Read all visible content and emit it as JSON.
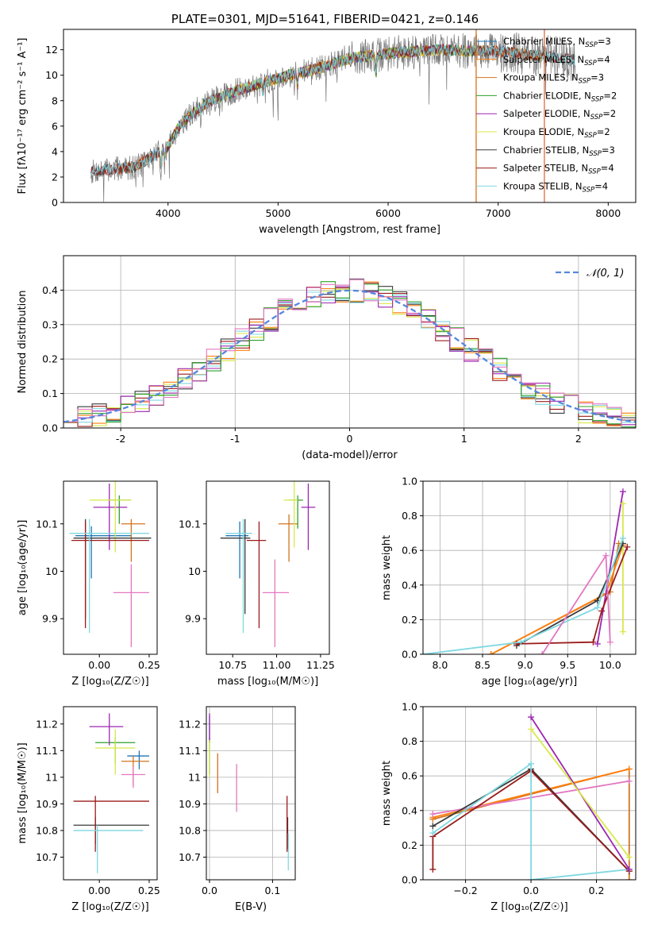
{
  "figure_title": "PLATE=0301, MJD=51641, FIBERID=0421, z=0.146",
  "palette": {
    "Chabrier MILES": "#1f77b4",
    "Salpeter MILES": "#ff7f0e",
    "Kroupa MILES": "#d2751f",
    "Chabrier ELODIE": "#2ca02c",
    "Salpeter ELODIE": "#9c27b0",
    "Kroupa ELODIE": "#d7e84a",
    "Chabrier STELIB": "#3a3a3a",
    "Salpeter STELIB": "#9b1b1b",
    "Kroupa STELIB": "#7fd8e0",
    "Data": "#777777",
    "Gaussian": "#5588dd",
    "Extra": "#e377c2"
  },
  "chart_data": [
    {
      "id": "spectrum",
      "type": "line",
      "title": "PLATE=0301, MJD=51641, FIBERID=0421, z=0.146",
      "xlabel": "wavelength [Angstrom, rest frame]",
      "ylabel": "Flux [fλ10⁻¹⁷ erg cm⁻² s⁻¹ A⁻¹]",
      "xlim": [
        3050,
        8250
      ],
      "ylim": [
        0,
        13.6
      ],
      "xticks": [
        4000,
        5000,
        6000,
        7000,
        8000
      ],
      "yticks": [
        0,
        2,
        4,
        6,
        8,
        10,
        12
      ],
      "legend_position": "top-right",
      "series_labels": [
        "Chabrier MILES, N_SSP=3",
        "Salpeter MILES, N_SSP=4",
        "Kroupa MILES, N_SSP=3",
        "Chabrier ELODIE, N_SSP=2",
        "Salpeter ELODIE, N_SSP=2",
        "Kroupa ELODIE, N_SSP=2",
        "Chabrier STELIB, N_SSP=3",
        "Salpeter STELIB, N_SSP=4",
        "Kroupa STELIB, N_SSP=4"
      ],
      "continuum": {
        "x": [
          3300,
          3500,
          3700,
          3850,
          4000,
          4100,
          4300,
          4500,
          4700,
          4900,
          5100,
          5300,
          5500,
          5700,
          5900,
          6100,
          6300,
          6500,
          6700,
          6900,
          7100,
          7300,
          7500,
          7700
        ],
        "y": [
          2.4,
          2.6,
          2.8,
          3.6,
          4.4,
          6.0,
          7.6,
          8.4,
          9.0,
          9.5,
          10.0,
          10.4,
          10.9,
          11.4,
          11.6,
          11.8,
          11.9,
          12.0,
          11.9,
          11.9,
          11.8,
          11.6,
          11.4,
          11.2
        ]
      }
    },
    {
      "id": "residuals",
      "type": "step",
      "xlabel": "(data-model)/error",
      "ylabel": "Normed distribution",
      "xlim": [
        -2.5,
        2.5
      ],
      "ylim": [
        0,
        0.5
      ],
      "xticks": [
        -2,
        -1,
        0,
        1,
        2
      ],
      "yticks": [
        0.0,
        0.1,
        0.2,
        0.3,
        0.4
      ],
      "grid": true,
      "legend_position": "top-right",
      "gaussian_label": "𝒩(0, 1)",
      "bin_width": 0.125
    },
    {
      "id": "age-vs-Z",
      "type": "errorbar",
      "xlabel": "Z [log₁₀(Z/Z☉)]",
      "ylabel": "age  [log₁₀(age/yr)]",
      "xlim": [
        -0.18,
        0.29
      ],
      "ylim": [
        9.825,
        10.19
      ],
      "xticks": [
        0.0,
        0.25
      ],
      "xticklabels": [
        "0.00",
        "0.25"
      ],
      "yticks": [
        9.9,
        10.0,
        10.1
      ],
      "points": [
        {
          "model": "Chabrier MILES",
          "x": -0.04,
          "y": 10.075,
          "xerr": [
            0.08,
            0.2
          ],
          "yerr": [
            0.09,
            0.02
          ]
        },
        {
          "model": "Kroupa MILES",
          "x": 0.16,
          "y": 10.1,
          "xerr": [
            0.05,
            0.07
          ],
          "yerr": [
            0.08,
            0.01
          ]
        },
        {
          "model": "Chabrier ELODIE",
          "x": 0.1,
          "y": 10.15,
          "xerr": [
            0.06,
            0.06
          ],
          "yerr": [
            0.05,
            0.01
          ]
        },
        {
          "model": "Salpeter ELODIE",
          "x": 0.05,
          "y": 10.135,
          "xerr": [
            0.08,
            0.09
          ],
          "yerr": [
            0.09,
            0.05
          ]
        },
        {
          "model": "Kroupa ELODIE",
          "x": 0.08,
          "y": 10.15,
          "xerr": [
            0.13,
            0.08
          ],
          "yerr": [
            0.11,
            0.04
          ]
        },
        {
          "model": "Chabrier STELIB",
          "x": -0.07,
          "y": 10.07,
          "xerr": [
            0.06,
            0.33
          ],
          "yerr": [
            0.17,
            0.04
          ]
        },
        {
          "model": "Salpeter STELIB",
          "x": -0.07,
          "y": 10.065,
          "xerr": [
            0.07,
            0.32
          ],
          "yerr": [
            0.185,
            0.04
          ]
        },
        {
          "model": "Kroupa STELIB",
          "x": -0.05,
          "y": 10.08,
          "xerr": [
            0.1,
            0.3
          ],
          "yerr": [
            0.21,
            0.03
          ]
        },
        {
          "model": "Extra",
          "x": 0.16,
          "y": 9.955,
          "xerr": [
            0.09,
            0.09
          ],
          "yerr": [
            0.115,
            0.06
          ]
        }
      ]
    },
    {
      "id": "age-vs-mass",
      "type": "errorbar",
      "xlabel": "mass [log₁₀(M/M☉)]",
      "xlim": [
        10.6,
        11.3
      ],
      "ylim": [
        9.825,
        10.19
      ],
      "xticks": [
        10.75,
        11.0,
        11.25
      ],
      "xticklabels": [
        "10.75",
        "11.00",
        "11.25"
      ],
      "yticks": [
        9.9,
        10.0,
        10.1
      ],
      "points": [
        {
          "model": "Chabrier MILES",
          "x": 10.79,
          "y": 10.075,
          "xerr": [
            0.08,
            0.05
          ],
          "yerr": [
            0.09,
            0.03
          ]
        },
        {
          "model": "Kroupa MILES",
          "x": 11.07,
          "y": 10.1,
          "xerr": [
            0.06,
            0.05
          ],
          "yerr": [
            0.08,
            0.02
          ]
        },
        {
          "model": "Chabrier ELODIE",
          "x": 11.12,
          "y": 10.15,
          "xerr": [
            0.05,
            0.03
          ],
          "yerr": [
            0.06,
            0.01
          ]
        },
        {
          "model": "Salpeter ELODIE",
          "x": 11.18,
          "y": 10.135,
          "xerr": [
            0.04,
            0.04
          ],
          "yerr": [
            0.09,
            0.05
          ]
        },
        {
          "model": "Kroupa ELODIE",
          "x": 11.1,
          "y": 10.15,
          "xerr": [
            0.06,
            0.02
          ],
          "yerr": [
            0.1,
            0.04
          ]
        },
        {
          "model": "Chabrier STELIB",
          "x": 10.82,
          "y": 10.07,
          "xerr": [
            0.14,
            0.03
          ],
          "yerr": [
            0.16,
            0.04
          ]
        },
        {
          "model": "Salpeter STELIB",
          "x": 10.9,
          "y": 10.065,
          "xerr": [
            0.07,
            0.04
          ],
          "yerr": [
            0.185,
            0.04
          ]
        },
        {
          "model": "Kroupa STELIB",
          "x": 10.81,
          "y": 10.08,
          "xerr": [
            0.1,
            0.05
          ],
          "yerr": [
            0.21,
            0.03
          ]
        },
        {
          "model": "Extra",
          "x": 10.99,
          "y": 9.955,
          "xerr": [
            0.07,
            0.08
          ],
          "yerr": [
            0.115,
            0.07
          ]
        }
      ]
    },
    {
      "id": "weight-vs-age",
      "type": "line",
      "xlabel": "age  [log₁₀(age/yr)]",
      "ylabel": "mass weight",
      "xlim": [
        7.8,
        10.3
      ],
      "ylim": [
        0,
        1
      ],
      "xticks": [
        8.0,
        8.5,
        9.0,
        9.5,
        10.0
      ],
      "xticklabels": [
        "8.0",
        "8.5",
        "9.0",
        "9.5",
        "10.0"
      ],
      "yticks": [
        0,
        0.2,
        0.4,
        0.6,
        0.8,
        1.0
      ],
      "yticklabels": [
        "0.0",
        "0.2",
        "0.4",
        "0.6",
        "0.8",
        "1.0"
      ],
      "grid": true,
      "series": [
        {
          "model": "Kroupa MILES",
          "x": [
            8.6,
            10.0,
            10.1
          ],
          "y": [
            0.0,
            0.36,
            0.64
          ]
        },
        {
          "model": "Salpeter MILES",
          "x": [
            8.6,
            9.95,
            10.15
          ],
          "y": [
            0.0,
            0.35,
            0.63
          ]
        },
        {
          "model": "Salpeter ELODIE",
          "x": [
            9.85,
            10.15
          ],
          "y": [
            0.06,
            0.94
          ]
        },
        {
          "model": "Kroupa ELODIE",
          "x": [
            10.15,
            10.15
          ],
          "y": [
            0.13,
            0.87
          ]
        },
        {
          "model": "Chabrier STELIB",
          "x": [
            8.9,
            9.85,
            10.15
          ],
          "y": [
            0.05,
            0.31,
            0.64
          ]
        },
        {
          "model": "Salpeter STELIB",
          "x": [
            8.9,
            9.8,
            9.9,
            10.2
          ],
          "y": [
            0.06,
            0.07,
            0.25,
            0.62
          ]
        },
        {
          "model": "Kroupa STELIB",
          "x": [
            7.8,
            8.95,
            9.85,
            10.15
          ],
          "y": [
            0.0,
            0.07,
            0.27,
            0.67
          ]
        },
        {
          "model": "Extra",
          "x": [
            9.2,
            9.95,
            10.0
          ],
          "y": [
            0.0,
            0.57,
            0.07
          ]
        }
      ]
    },
    {
      "id": "mass-vs-Z",
      "type": "errorbar",
      "xlabel": "Z [log₁₀(Z/Z☉)]",
      "ylabel": "mass [log₁₀(M/M☉)]",
      "xlim": [
        -0.18,
        0.29
      ],
      "ylim": [
        10.615,
        11.265
      ],
      "xticks": [
        0.0,
        0.25
      ],
      "xticklabels": [
        "0.00",
        "0.25"
      ],
      "yticks": [
        10.7,
        10.8,
        10.9,
        11.0,
        11.1,
        11.2
      ],
      "points": [
        {
          "model": "Chabrier MILES",
          "x": 0.2,
          "y": 11.08,
          "xerr": [
            0.06,
            0.05
          ],
          "yerr": [
            0.05,
            0.02
          ]
        },
        {
          "model": "Kroupa MILES",
          "x": 0.17,
          "y": 11.06,
          "xerr": [
            0.06,
            0.08
          ],
          "yerr": [
            0.09,
            0.02
          ]
        },
        {
          "model": "Chabrier ELODIE",
          "x": 0.08,
          "y": 11.13,
          "xerr": [
            0.1,
            0.1
          ],
          "yerr": [
            0.08,
            0.02
          ]
        },
        {
          "model": "Salpeter ELODIE",
          "x": 0.05,
          "y": 11.19,
          "xerr": [
            0.1,
            0.07
          ],
          "yerr": [
            0.07,
            0.05
          ]
        },
        {
          "model": "Kroupa ELODIE",
          "x": 0.08,
          "y": 11.11,
          "xerr": [
            0.1,
            0.1
          ],
          "yerr": [
            0.1,
            0.07
          ]
        },
        {
          "model": "Chabrier STELIB",
          "x": -0.02,
          "y": 10.82,
          "xerr": [
            0.11,
            0.27
          ],
          "yerr": [
            0.07,
            0.03
          ]
        },
        {
          "model": "Salpeter STELIB",
          "x": -0.02,
          "y": 10.91,
          "xerr": [
            0.11,
            0.27
          ],
          "yerr": [
            0.19,
            0.02
          ]
        },
        {
          "model": "Kroupa STELIB",
          "x": -0.01,
          "y": 10.8,
          "xerr": [
            0.12,
            0.23
          ],
          "yerr": [
            0.16,
            0.02
          ]
        },
        {
          "model": "Extra",
          "x": 0.17,
          "y": 11.01,
          "xerr": [
            0.06,
            0.06
          ],
          "yerr": [
            0.05,
            0.03
          ]
        }
      ]
    },
    {
      "id": "mass-vs-EBV",
      "type": "errorbar",
      "xlabel": "E(B-V)",
      "xlim": [
        -0.005,
        0.136
      ],
      "ylim": [
        10.615,
        11.265
      ],
      "xticks": [
        0.0,
        0.1
      ],
      "xticklabels": [
        "0.0",
        "0.1"
      ],
      "yticks": [
        10.7,
        10.8,
        10.9,
        11.0,
        11.1,
        11.2
      ],
      "grid": true,
      "points": [
        {
          "model": "Chabrier MILES",
          "x": 0.0,
          "y": 11.17,
          "xerr": [
            0,
            0
          ],
          "yerr": [
            0.04,
            0.06
          ]
        },
        {
          "model": "Kroupa MILES",
          "x": 0.013,
          "y": 11.0,
          "xerr": [
            0,
            0
          ],
          "yerr": [
            0.06,
            0.09
          ]
        },
        {
          "model": "Chabrier ELODIE",
          "x": 0.0,
          "y": 11.05,
          "xerr": [
            0,
            0
          ],
          "yerr": [
            0.04,
            0.1
          ]
        },
        {
          "model": "Salpeter ELODIE",
          "x": 0.0,
          "y": 11.18,
          "xerr": [
            0,
            0
          ],
          "yerr": [
            0.05,
            0.06
          ]
        },
        {
          "model": "Kroupa ELODIE",
          "x": 0.0,
          "y": 11.06,
          "xerr": [
            0,
            0
          ],
          "yerr": [
            0.06,
            0.08
          ]
        },
        {
          "model": "Chabrier STELIB",
          "x": 0.124,
          "y": 10.78,
          "xerr": [
            0,
            0
          ],
          "yerr": [
            0.05,
            0.07
          ]
        },
        {
          "model": "Salpeter STELIB",
          "x": 0.123,
          "y": 10.82,
          "xerr": [
            0,
            0
          ],
          "yerr": [
            0.1,
            0.11
          ]
        },
        {
          "model": "Kroupa STELIB",
          "x": 0.125,
          "y": 10.73,
          "xerr": [
            0,
            0
          ],
          "yerr": [
            0.08,
            0.06
          ]
        },
        {
          "model": "Extra",
          "x": 0.043,
          "y": 10.97,
          "xerr": [
            0,
            0
          ],
          "yerr": [
            0.1,
            0.08
          ]
        }
      ]
    },
    {
      "id": "weight-vs-Z",
      "type": "line",
      "xlabel": "Z [log₁₀(Z/Z☉)]",
      "ylabel": "mass weight",
      "xlim": [
        -0.33,
        0.32
      ],
      "ylim": [
        0,
        1
      ],
      "xticks": [
        -0.2,
        0.0,
        0.2
      ],
      "xticklabels": [
        "−0.2",
        "0.0",
        "0.2"
      ],
      "yticks": [
        0,
        0.2,
        0.4,
        0.6,
        0.8,
        1.0
      ],
      "yticklabels": [
        "0.0",
        "0.2",
        "0.4",
        "0.6",
        "0.8",
        "1.0"
      ],
      "grid": true,
      "series": [
        {
          "model": "Kroupa MILES",
          "x": [
            -0.3,
            0.3,
            0.3
          ],
          "y": [
            0.35,
            0.64,
            0.0
          ]
        },
        {
          "model": "Salpeter MILES",
          "x": [
            -0.3,
            0.3
          ],
          "y": [
            0.36,
            0.64
          ]
        },
        {
          "model": "Extra",
          "x": [
            -0.3,
            0.3
          ],
          "y": [
            0.38,
            0.57
          ]
        },
        {
          "model": "Chabrier STELIB",
          "x": [
            -0.3,
            0.0,
            0.3
          ],
          "y": [
            0.31,
            0.64,
            0.05
          ]
        },
        {
          "model": "Salpeter STELIB",
          "x": [
            -0.3,
            -0.3,
            0.0,
            0.3
          ],
          "y": [
            0.06,
            0.25,
            0.63,
            0.05
          ]
        },
        {
          "model": "Kroupa STELIB",
          "x": [
            -0.3,
            0.0,
            0.0,
            0.3
          ],
          "y": [
            0.27,
            0.67,
            0.0,
            0.06
          ]
        },
        {
          "model": "Salpeter ELODIE",
          "x": [
            0.0,
            0.3
          ],
          "y": [
            0.94,
            0.06
          ]
        },
        {
          "model": "Kroupa ELODIE",
          "x": [
            0.0,
            0.3
          ],
          "y": [
            0.87,
            0.13
          ]
        }
      ]
    }
  ]
}
